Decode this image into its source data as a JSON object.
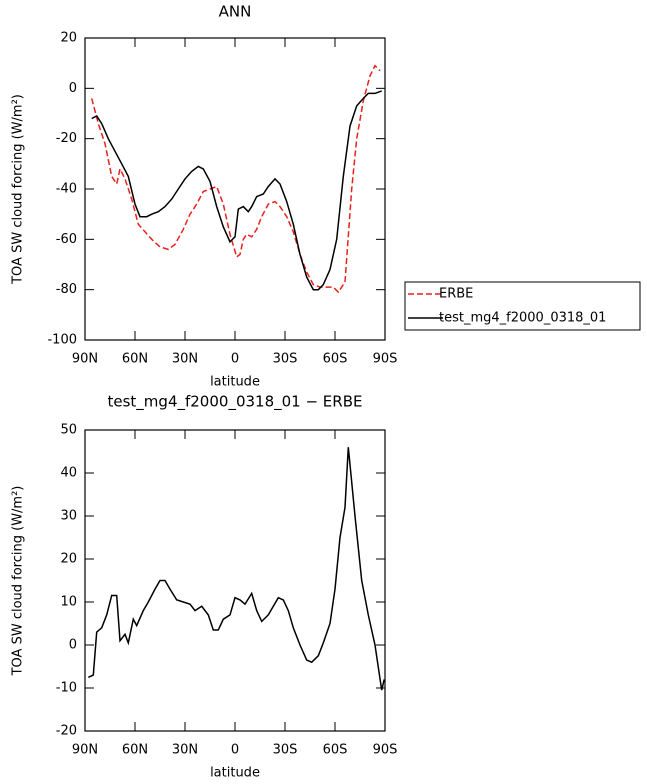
{
  "chart_data": [
    {
      "type": "line",
      "title": "ANN",
      "xlabel": "latitude",
      "ylabel": "TOA SW cloud forcing (W/m²)",
      "xlim": [
        90,
        -90
      ],
      "xticks": [
        {
          "value": 90,
          "label": "90N"
        },
        {
          "value": 60,
          "label": "60N"
        },
        {
          "value": 30,
          "label": "30N"
        },
        0,
        {
          "value": -30,
          "label": "30S"
        },
        {
          "value": -60,
          "label": "60S"
        },
        {
          "value": -90,
          "label": "90S"
        }
      ],
      "ylim": [
        -100,
        20
      ],
      "yticks": [
        -100,
        -80,
        -60,
        -40,
        -20,
        0,
        20
      ],
      "legend": "outside-right",
      "series": [
        {
          "name": "ERBE",
          "color": "#e8211c",
          "linestyle": "dashed",
          "x": [
            86,
            82,
            78,
            74,
            71,
            69,
            66,
            62,
            58,
            54,
            50,
            45,
            40,
            36,
            31,
            27,
            23,
            19,
            15,
            11,
            7,
            3,
            -1,
            -3,
            -5,
            -7,
            -10,
            -13,
            -16,
            -20,
            -24,
            -27,
            -31,
            -35,
            -39,
            -43,
            -47,
            -51,
            -55,
            -59,
            -62,
            -66,
            -70,
            -73,
            -77,
            -81,
            -84,
            -87
          ],
          "values": [
            -4,
            -14,
            -22,
            -35,
            -38,
            -32,
            -36,
            -44,
            -54,
            -57,
            -60,
            -63,
            -64,
            -62,
            -56,
            -50,
            -46,
            -41,
            -40,
            -39,
            -46,
            -58,
            -67,
            -66,
            -60,
            -58,
            -59,
            -56,
            -51,
            -46,
            -45,
            -47,
            -51,
            -57,
            -66,
            -73,
            -78,
            -79,
            -79,
            -79,
            -81,
            -77,
            -40,
            -20,
            -5,
            5,
            9,
            7
          ]
        },
        {
          "name": "test_mg4_f2000_0318_01",
          "color": "#000000",
          "linestyle": "solid",
          "x": [
            86,
            83,
            80,
            76,
            72,
            68,
            64,
            60,
            57,
            53,
            50,
            46,
            42,
            38,
            34,
            30,
            26,
            22,
            19,
            15,
            11,
            7,
            3,
            0,
            -2,
            -5,
            -8,
            -10,
            -13,
            -17,
            -20,
            -24,
            -27,
            -31,
            -35,
            -39,
            -43,
            -47,
            -50,
            -53,
            -57,
            -61,
            -65,
            -69,
            -73,
            -77,
            -80,
            -84,
            -88
          ],
          "values": [
            -12,
            -11,
            -14,
            -20,
            -25,
            -30,
            -35,
            -46,
            -51,
            -51,
            -50,
            -49,
            -47,
            -44,
            -40,
            -36,
            -33,
            -31,
            -32,
            -37,
            -47,
            -55,
            -61,
            -59,
            -48,
            -47,
            -49,
            -47,
            -43,
            -42,
            -39,
            -36,
            -38,
            -45,
            -54,
            -66,
            -75,
            -80,
            -80,
            -78,
            -72,
            -60,
            -35,
            -15,
            -7,
            -4,
            -2,
            -2,
            -1
          ]
        }
      ]
    },
    {
      "type": "line",
      "title": "test_mg4_f2000_0318_01 − ERBE",
      "xlabel": "latitude",
      "ylabel": "TOA SW cloud forcing (W/m²)",
      "xlim": [
        90,
        -90
      ],
      "xticks": [
        {
          "value": 90,
          "label": "90N"
        },
        {
          "value": 60,
          "label": "60N"
        },
        {
          "value": 30,
          "label": "30N"
        },
        0,
        {
          "value": -30,
          "label": "30S"
        },
        {
          "value": -60,
          "label": "60S"
        },
        {
          "value": -90,
          "label": "90S"
        }
      ],
      "ylim": [
        -20,
        50
      ],
      "yticks": [
        -20,
        -10,
        0,
        10,
        20,
        30,
        40,
        50
      ],
      "series": [
        {
          "color": "#000000",
          "linestyle": "solid",
          "x": [
            88,
            85,
            83,
            80,
            77,
            74,
            71,
            69,
            66,
            64,
            61,
            59,
            55,
            52,
            48,
            45,
            42,
            39,
            35,
            31,
            27,
            24,
            20,
            16,
            13,
            10,
            7,
            3,
            0,
            -3,
            -6,
            -10,
            -13,
            -16,
            -20,
            -23,
            -26,
            -29,
            -32,
            -35,
            -39,
            -43,
            -46,
            -50,
            -53,
            -57,
            -60,
            -63,
            -66,
            -68,
            -72,
            -76,
            -80,
            -84,
            -88,
            -89.5
          ],
          "values": [
            -7.5,
            -7,
            3,
            4,
            7,
            11.5,
            11.5,
            1,
            2.5,
            0.5,
            6,
            4.5,
            8,
            10,
            13,
            15,
            15,
            13,
            10.5,
            10,
            9.5,
            8,
            9,
            7,
            3.5,
            3.5,
            6,
            7,
            11,
            10.5,
            9.5,
            12,
            8,
            5.5,
            7,
            9,
            11,
            10.5,
            8,
            4,
            0,
            -3.5,
            -4,
            -2.5,
            0.5,
            5,
            13,
            25,
            32,
            46,
            30,
            15,
            7,
            0,
            -10.5,
            -8
          ]
        }
      ]
    }
  ]
}
